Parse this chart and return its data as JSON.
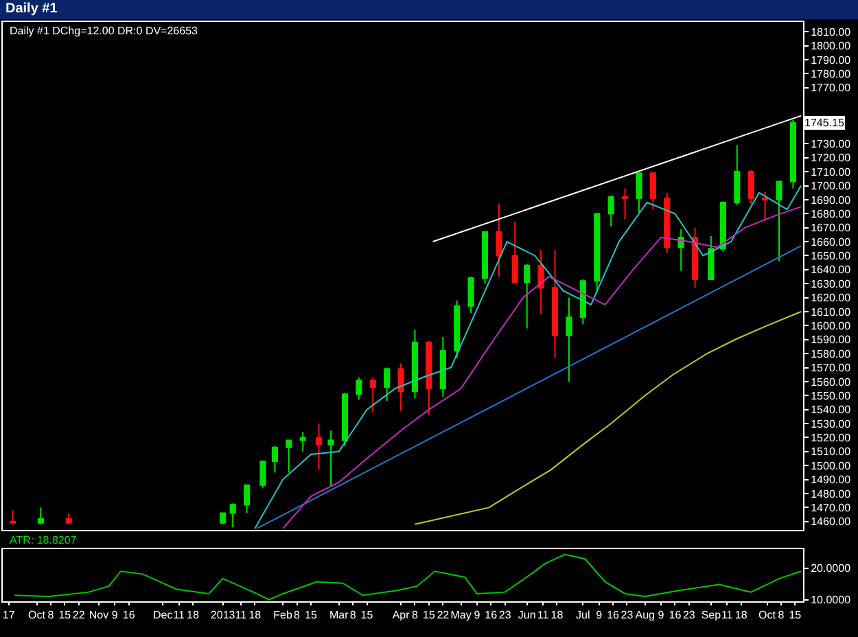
{
  "chart_data": [
    {
      "type": "candlestick",
      "title": "Daily #1",
      "subtitle": "Daily #1 DChg=12.00 DR:0 DV=26653",
      "x": [
        "2012-09-19",
        "2012-10-03",
        "2012-10-17",
        "2013-01-02",
        "2013-01-07",
        "2013-01-14",
        "2013-01-22",
        "2013-01-28",
        "2013-02-04",
        "2013-02-11",
        "2013-02-19",
        "2013-02-25",
        "2013-03-04",
        "2013-03-11",
        "2013-03-18",
        "2013-03-25",
        "2013-04-01",
        "2013-04-08",
        "2013-04-15",
        "2013-04-22",
        "2013-04-29",
        "2013-05-06",
        "2013-05-13",
        "2013-05-20",
        "2013-05-28",
        "2013-06-03",
        "2013-06-10",
        "2013-06-17",
        "2013-06-24",
        "2013-07-01",
        "2013-07-08",
        "2013-07-15",
        "2013-07-22",
        "2013-07-29",
        "2013-08-05",
        "2013-08-12",
        "2013-08-19",
        "2013-08-26",
        "2013-09-03",
        "2013-09-09",
        "2013-09-16",
        "2013-09-23",
        "2013-09-30",
        "2013-10-07",
        "2013-10-14"
      ],
      "ohlc": [
        [
          1460,
          1468,
          1458,
          1459
        ],
        [
          1459,
          1470,
          1458,
          1462
        ],
        [
          1462,
          1466,
          1458,
          1459
        ],
        [
          1459,
          1466,
          1458,
          1466
        ],
        [
          1466,
          1473,
          1456,
          1472
        ],
        [
          1472,
          1486,
          1466,
          1486
        ],
        [
          1486,
          1503,
          1484,
          1503
        ],
        [
          1503,
          1514,
          1495,
          1513
        ],
        [
          1513,
          1518,
          1495,
          1518
        ],
        [
          1518,
          1524,
          1510,
          1520
        ],
        [
          1520,
          1530,
          1497,
          1515
        ],
        [
          1515,
          1525,
          1485,
          1518
        ],
        [
          1518,
          1552,
          1514,
          1551
        ],
        [
          1551,
          1563,
          1547,
          1561
        ],
        [
          1561,
          1563,
          1538,
          1556
        ],
        [
          1556,
          1570,
          1546,
          1569
        ],
        [
          1569,
          1573,
          1539,
          1553
        ],
        [
          1553,
          1597,
          1548,
          1588
        ],
        [
          1588,
          1589,
          1536,
          1555
        ],
        [
          1555,
          1592,
          1549,
          1582
        ],
        [
          1582,
          1618,
          1577,
          1614
        ],
        [
          1614,
          1635,
          1609,
          1634
        ],
        [
          1634,
          1667,
          1630,
          1667
        ],
        [
          1667,
          1687,
          1635,
          1650
        ],
        [
          1650,
          1674,
          1630,
          1631
        ],
        [
          1631,
          1644,
          1598,
          1643
        ],
        [
          1643,
          1654,
          1608,
          1627
        ],
        [
          1627,
          1654,
          1577,
          1593
        ],
        [
          1593,
          1620,
          1560,
          1606
        ],
        [
          1606,
          1633,
          1601,
          1632
        ],
        [
          1632,
          1680,
          1624,
          1680
        ],
        [
          1680,
          1693,
          1671,
          1692
        ],
        [
          1692,
          1698,
          1676,
          1691
        ],
        [
          1691,
          1709,
          1681,
          1709
        ],
        [
          1709,
          1709,
          1683,
          1691
        ],
        [
          1691,
          1695,
          1652,
          1656
        ],
        [
          1656,
          1669,
          1639,
          1663
        ],
        [
          1663,
          1670,
          1627,
          1633
        ],
        [
          1633,
          1664,
          1633,
          1655
        ],
        [
          1655,
          1689,
          1653,
          1688
        ],
        [
          1688,
          1729,
          1686,
          1710
        ],
        [
          1710,
          1711,
          1687,
          1691
        ],
        [
          1691,
          1696,
          1675,
          1690
        ],
        [
          1690,
          1703,
          1646,
          1703
        ],
        [
          1703,
          1747,
          1698,
          1745
        ]
      ],
      "series": [
        {
          "type": "line",
          "color": "#ffffff",
          "x": [
            "2013-04-17",
            "2013-10-18"
          ],
          "values": [
            1660,
            1750
          ]
        },
        {
          "type": "line",
          "color": "#1e78d2",
          "x": [
            "2013-01-19",
            "2013-10-18"
          ],
          "values": [
            1455,
            1657
          ]
        },
        {
          "type": "line",
          "color": "#20c8c8",
          "x": [
            "2013-01-18",
            "2013-02-01",
            "2013-02-15",
            "2013-03-01",
            "2013-03-15",
            "2013-03-29",
            "2013-04-12",
            "2013-04-26",
            "2013-05-10",
            "2013-05-24",
            "2013-06-07",
            "2013-06-21",
            "2013-07-05",
            "2013-07-19",
            "2013-08-02",
            "2013-08-16",
            "2013-08-30",
            "2013-09-13",
            "2013-09-27",
            "2013-10-11",
            "2013-10-18"
          ],
          "values": [
            1455,
            1490,
            1508,
            1510,
            1540,
            1555,
            1563,
            1570,
            1615,
            1660,
            1650,
            1625,
            1615,
            1660,
            1688,
            1680,
            1650,
            1660,
            1695,
            1683,
            1700
          ]
        },
        {
          "type": "line",
          "color": "#c828c8",
          "x": [
            "2013-02-01",
            "2013-02-15",
            "2013-03-01",
            "2013-03-15",
            "2013-04-01",
            "2013-04-15",
            "2013-05-01",
            "2013-05-15",
            "2013-06-01",
            "2013-06-14",
            "2013-06-28",
            "2013-07-12",
            "2013-07-26",
            "2013-08-09",
            "2013-08-23",
            "2013-09-06",
            "2013-09-20",
            "2013-10-04",
            "2013-10-18"
          ],
          "values": [
            1455,
            1478,
            1488,
            1505,
            1525,
            1540,
            1555,
            1585,
            1620,
            1635,
            1625,
            1615,
            1640,
            1663,
            1660,
            1656,
            1670,
            1678,
            1685
          ]
        },
        {
          "type": "line",
          "color": "#c8c820",
          "x": [
            "2013-04-08",
            "2013-05-15",
            "2013-06-01",
            "2013-06-15",
            "2013-07-01",
            "2013-07-15",
            "2013-08-01",
            "2013-08-15",
            "2013-09-01",
            "2013-09-15",
            "2013-10-01",
            "2013-10-18"
          ],
          "values": [
            1458,
            1470,
            1485,
            1497,
            1515,
            1530,
            1550,
            1565,
            1580,
            1590,
            1600,
            1610
          ]
        }
      ],
      "xlim": [
        "2012-09-14",
        "2013-10-19"
      ],
      "ylim": [
        1454,
        1817
      ],
      "yticks": [
        {
          "value": 1460,
          "label": "1460.00"
        },
        {
          "value": 1470,
          "label": "1470.00"
        },
        {
          "value": 1480,
          "label": "1480.00"
        },
        {
          "value": 1490,
          "label": "1490.00"
        },
        {
          "value": 1500,
          "label": "1500.00"
        },
        {
          "value": 1510,
          "label": "1510.00"
        },
        {
          "value": 1520,
          "label": "1520.00"
        },
        {
          "value": 1530,
          "label": "1530.00"
        },
        {
          "value": 1540,
          "label": "1540.00"
        },
        {
          "value": 1550,
          "label": "1550.00"
        },
        {
          "value": 1560,
          "label": "1560.00"
        },
        {
          "value": 1570,
          "label": "1570.00"
        },
        {
          "value": 1580,
          "label": "1580.00"
        },
        {
          "value": 1590,
          "label": "1590.00"
        },
        {
          "value": 1600,
          "label": "1600.00"
        },
        {
          "value": 1610,
          "label": "1610.00"
        },
        {
          "value": 1620,
          "label": "1620.00"
        },
        {
          "value": 1630,
          "label": "1630.00"
        },
        {
          "value": 1640,
          "label": "1640.00"
        },
        {
          "value": 1650,
          "label": "1650.00"
        },
        {
          "value": 1660,
          "label": "1660.00"
        },
        {
          "value": 1670,
          "label": "1670.00"
        },
        {
          "value": 1680,
          "label": "1680.00"
        },
        {
          "value": 1690,
          "label": "1690.00"
        },
        {
          "value": 1700,
          "label": "1700.00"
        },
        {
          "value": 1710,
          "label": "1710.00"
        },
        {
          "value": 1720,
          "label": "1720.00"
        },
        {
          "value": 1730,
          "label": "1730.00"
        },
        {
          "value": 1770,
          "label": "1770.00"
        },
        {
          "value": 1780,
          "label": "1780.00"
        },
        {
          "value": 1790,
          "label": "1790.00"
        },
        {
          "value": 1800,
          "label": "1800.00"
        },
        {
          "value": 1810,
          "label": "1810.00"
        }
      ],
      "annotations": [
        {
          "text": "1745.15",
          "y": 1745.15
        }
      ],
      "tick_labels": "y"
    },
    {
      "type": "line",
      "annotations": [
        "ATR: 18.8207"
      ],
      "series": [
        {
          "color": "#00c800",
          "x": [
            "2012-09-20",
            "2012-10-07",
            "2012-10-27",
            "2012-11-06",
            "2012-11-12",
            "2012-11-23",
            "2012-12-10",
            "2012-12-26",
            "2013-01-02",
            "2013-01-19",
            "2013-01-25",
            "2013-02-01",
            "2013-02-18",
            "2013-03-03",
            "2013-03-13",
            "2013-03-30",
            "2013-04-09",
            "2013-04-18",
            "2013-05-03",
            "2013-05-09",
            "2013-05-23",
            "2013-06-05",
            "2013-06-12",
            "2013-06-22",
            "2013-07-02",
            "2013-07-12",
            "2013-07-22",
            "2013-08-01",
            "2013-08-18",
            "2013-09-07",
            "2013-09-23",
            "2013-10-07",
            "2013-10-18"
          ],
          "values": [
            11.4,
            11,
            12.4,
            14.3,
            19,
            18.1,
            13.3,
            11.9,
            16.7,
            11.9,
            10,
            11.9,
            15.7,
            15.2,
            11.4,
            12.9,
            14.3,
            19,
            17.1,
            11.9,
            12.4,
            18.1,
            21.4,
            24.3,
            22.9,
            15.7,
            11.9,
            11,
            12.9,
            14.8,
            12.4,
            16.7,
            19
          ]
        }
      ],
      "xlim": [
        "2012-09-14",
        "2013-10-19"
      ],
      "ylim": [
        9.5,
        26
      ],
      "yticks": [
        {
          "value": 10,
          "label": "10.0000"
        },
        {
          "value": 20,
          "label": "20.0000"
        }
      ],
      "xticks": [
        {
          "value": "2012-09-17",
          "label": "17"
        },
        {
          "value": "2012-10-01",
          "label": "Oct"
        },
        {
          "value": "2012-10-08",
          "label": "8"
        },
        {
          "value": "2012-10-15",
          "label": "15"
        },
        {
          "value": "2012-10-22",
          "label": "22"
        },
        {
          "value": "2012-11-01",
          "label": "Nov"
        },
        {
          "value": "2012-11-09",
          "label": "9"
        },
        {
          "value": "2012-11-16",
          "label": "16"
        },
        {
          "value": "2012-12-03",
          "label": "Dec"
        },
        {
          "value": "2012-12-11",
          "label": "11"
        },
        {
          "value": "2012-12-18",
          "label": "18"
        },
        {
          "value": "2013-01-02",
          "label": "2013"
        },
        {
          "value": "2013-01-11",
          "label": "11"
        },
        {
          "value": "2013-01-18",
          "label": "18"
        },
        {
          "value": "2013-02-01",
          "label": "Feb"
        },
        {
          "value": "2013-02-08",
          "label": "8"
        },
        {
          "value": "2013-02-15",
          "label": "15"
        },
        {
          "value": "2013-03-01",
          "label": "Mar"
        },
        {
          "value": "2013-03-08",
          "label": "8"
        },
        {
          "value": "2013-03-15",
          "label": "15"
        },
        {
          "value": "2013-04-01",
          "label": "Apr"
        },
        {
          "value": "2013-04-08",
          "label": "8"
        },
        {
          "value": "2013-04-15",
          "label": "15"
        },
        {
          "value": "2013-04-22",
          "label": "22"
        },
        {
          "value": "2013-05-01",
          "label": "May"
        },
        {
          "value": "2013-05-09",
          "label": "9"
        },
        {
          "value": "2013-05-16",
          "label": "16"
        },
        {
          "value": "2013-05-23",
          "label": "23"
        },
        {
          "value": "2013-06-03",
          "label": "Jun"
        },
        {
          "value": "2013-06-11",
          "label": "11"
        },
        {
          "value": "2013-06-18",
          "label": "18"
        },
        {
          "value": "2013-07-01",
          "label": "Jul"
        },
        {
          "value": "2013-07-09",
          "label": "9"
        },
        {
          "value": "2013-07-16",
          "label": "16"
        },
        {
          "value": "2013-07-23",
          "label": "23"
        },
        {
          "value": "2013-08-01",
          "label": "Aug"
        },
        {
          "value": "2013-08-09",
          "label": "9"
        },
        {
          "value": "2013-08-16",
          "label": "16"
        },
        {
          "value": "2013-08-23",
          "label": "23"
        },
        {
          "value": "2013-09-03",
          "label": "Sep"
        },
        {
          "value": "2013-09-11",
          "label": "11"
        },
        {
          "value": "2013-09-18",
          "label": "18"
        },
        {
          "value": "2013-10-01",
          "label": "Oct"
        },
        {
          "value": "2013-10-08",
          "label": "8"
        },
        {
          "value": "2013-10-15",
          "label": "15"
        }
      ]
    }
  ]
}
